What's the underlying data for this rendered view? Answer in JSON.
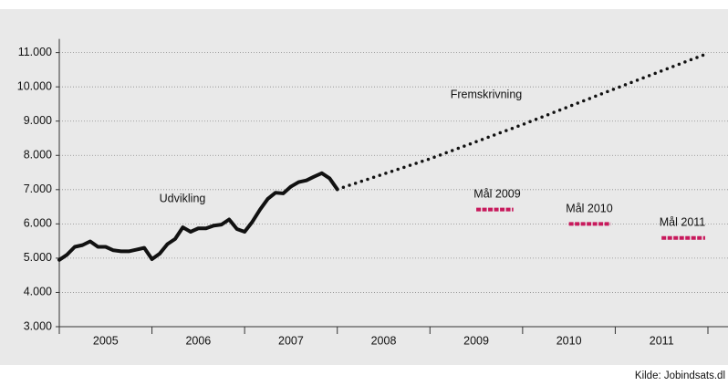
{
  "chart_data": {
    "type": "line",
    "xlim": [
      2005,
      2012
    ],
    "ylim": [
      3000,
      11400
    ],
    "yticks": [
      {
        "value": 3000,
        "label": "3.000"
      },
      {
        "value": 4000,
        "label": "4.000"
      },
      {
        "value": 5000,
        "label": "5.000"
      },
      {
        "value": 6000,
        "label": "6.000"
      },
      {
        "value": 7000,
        "label": "7.000"
      },
      {
        "value": 8000,
        "label": "8.000"
      },
      {
        "value": 9000,
        "label": "9.000"
      },
      {
        "value": 10000,
        "label": "10.000"
      },
      {
        "value": 11000,
        "label": "11.000"
      }
    ],
    "xticks": [
      {
        "value": 2005.5,
        "label": "2005"
      },
      {
        "value": 2006.5,
        "label": "2006"
      },
      {
        "value": 2007.5,
        "label": "2007"
      },
      {
        "value": 2008.5,
        "label": "2008"
      },
      {
        "value": 2009.5,
        "label": "2009"
      },
      {
        "value": 2010.5,
        "label": "2010"
      },
      {
        "value": 2011.5,
        "label": "2011"
      }
    ],
    "xdividers": [
      2005,
      2006,
      2007,
      2008,
      2009,
      2010,
      2011,
      2012
    ],
    "grid": true,
    "series": [
      {
        "name": "Udvikling",
        "color": "#111111",
        "style": "solid",
        "x": [
          2005.0,
          2005.083,
          2005.167,
          2005.25,
          2005.333,
          2005.417,
          2005.5,
          2005.583,
          2005.667,
          2005.75,
          2005.833,
          2005.917,
          2006.0,
          2006.083,
          2006.167,
          2006.25,
          2006.333,
          2006.417,
          2006.5,
          2006.583,
          2006.667,
          2006.75,
          2006.833,
          2006.917,
          2007.0,
          2007.083,
          2007.167,
          2007.25,
          2007.333,
          2007.417,
          2007.5,
          2007.583,
          2007.667,
          2007.75,
          2007.833,
          2007.917,
          2008.0
        ],
        "values": [
          4950,
          5100,
          5330,
          5380,
          5490,
          5330,
          5330,
          5230,
          5200,
          5200,
          5250,
          5300,
          4970,
          5130,
          5410,
          5560,
          5900,
          5770,
          5870,
          5870,
          5950,
          5980,
          6130,
          5850,
          5770,
          6060,
          6420,
          6730,
          6910,
          6890,
          7090,
          7220,
          7270,
          7380,
          7480,
          7330,
          7010
        ]
      },
      {
        "name": "Fremskrivning",
        "color": "#111111",
        "style": "dotted",
        "x": [
          2008,
          2009,
          2010,
          2011,
          2012
        ],
        "values": [
          7010,
          7900,
          8900,
          9950,
          10980
        ]
      },
      {
        "name": "Mål 2009",
        "color": "#c8195c",
        "style": "dashed",
        "x": [
          2009.5,
          2009.9
        ],
        "values": [
          6420,
          6420
        ]
      },
      {
        "name": "Mål 2010",
        "color": "#c8195c",
        "style": "dashed",
        "x": [
          2010.5,
          2010.95
        ],
        "values": [
          6000,
          6000
        ]
      },
      {
        "name": "Mål 2011",
        "color": "#c8195c",
        "style": "dashed",
        "x": [
          2011.5,
          2011.97
        ],
        "values": [
          5590,
          5590
        ]
      }
    ],
    "source": "Kilde: Jobindsats.dl"
  }
}
